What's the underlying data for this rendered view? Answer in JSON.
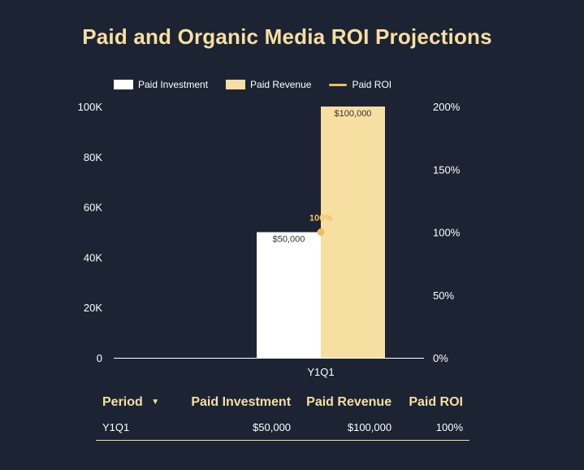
{
  "title": "Paid and Organic Media ROI Projections",
  "legend": [
    {
      "label": "Paid Investment",
      "kind": "bar",
      "color": "#ffffff"
    },
    {
      "label": "Paid Revenue",
      "kind": "bar",
      "color": "#f7dfa2"
    },
    {
      "label": "Paid ROI",
      "kind": "line",
      "color": "#e8c15a"
    }
  ],
  "chart_data": {
    "type": "bar",
    "title": "Paid and Organic Media ROI Projections",
    "categories": [
      "Y1Q1"
    ],
    "series": [
      {
        "name": "Paid Investment",
        "axis": "left",
        "values": [
          50000
        ],
        "labels": [
          "$50,000"
        ],
        "color": "#ffffff"
      },
      {
        "name": "Paid Revenue",
        "axis": "left",
        "values": [
          100000
        ],
        "labels": [
          "$100,000"
        ],
        "color": "#f7dfa2"
      },
      {
        "name": "Paid ROI",
        "axis": "right",
        "type": "line",
        "values": [
          100
        ],
        "labels": [
          "100%"
        ],
        "color": "#e8c15a"
      }
    ],
    "ylim": [
      0,
      100000
    ],
    "y_ticks": [
      "0",
      "20K",
      "40K",
      "60K",
      "80K",
      "100K"
    ],
    "y2lim": [
      0,
      200
    ],
    "y2_ticks": [
      "0%",
      "50%",
      "100%",
      "150%",
      "200%"
    ],
    "grid": false,
    "legend_position": "top"
  },
  "table": {
    "headers": [
      "Period",
      "Paid Investment",
      "Paid Revenue",
      "Paid ROI"
    ],
    "sort_indicator": "▼",
    "rows": [
      [
        "Y1Q1",
        "$50,000",
        "$100,000",
        "100%"
      ]
    ]
  }
}
